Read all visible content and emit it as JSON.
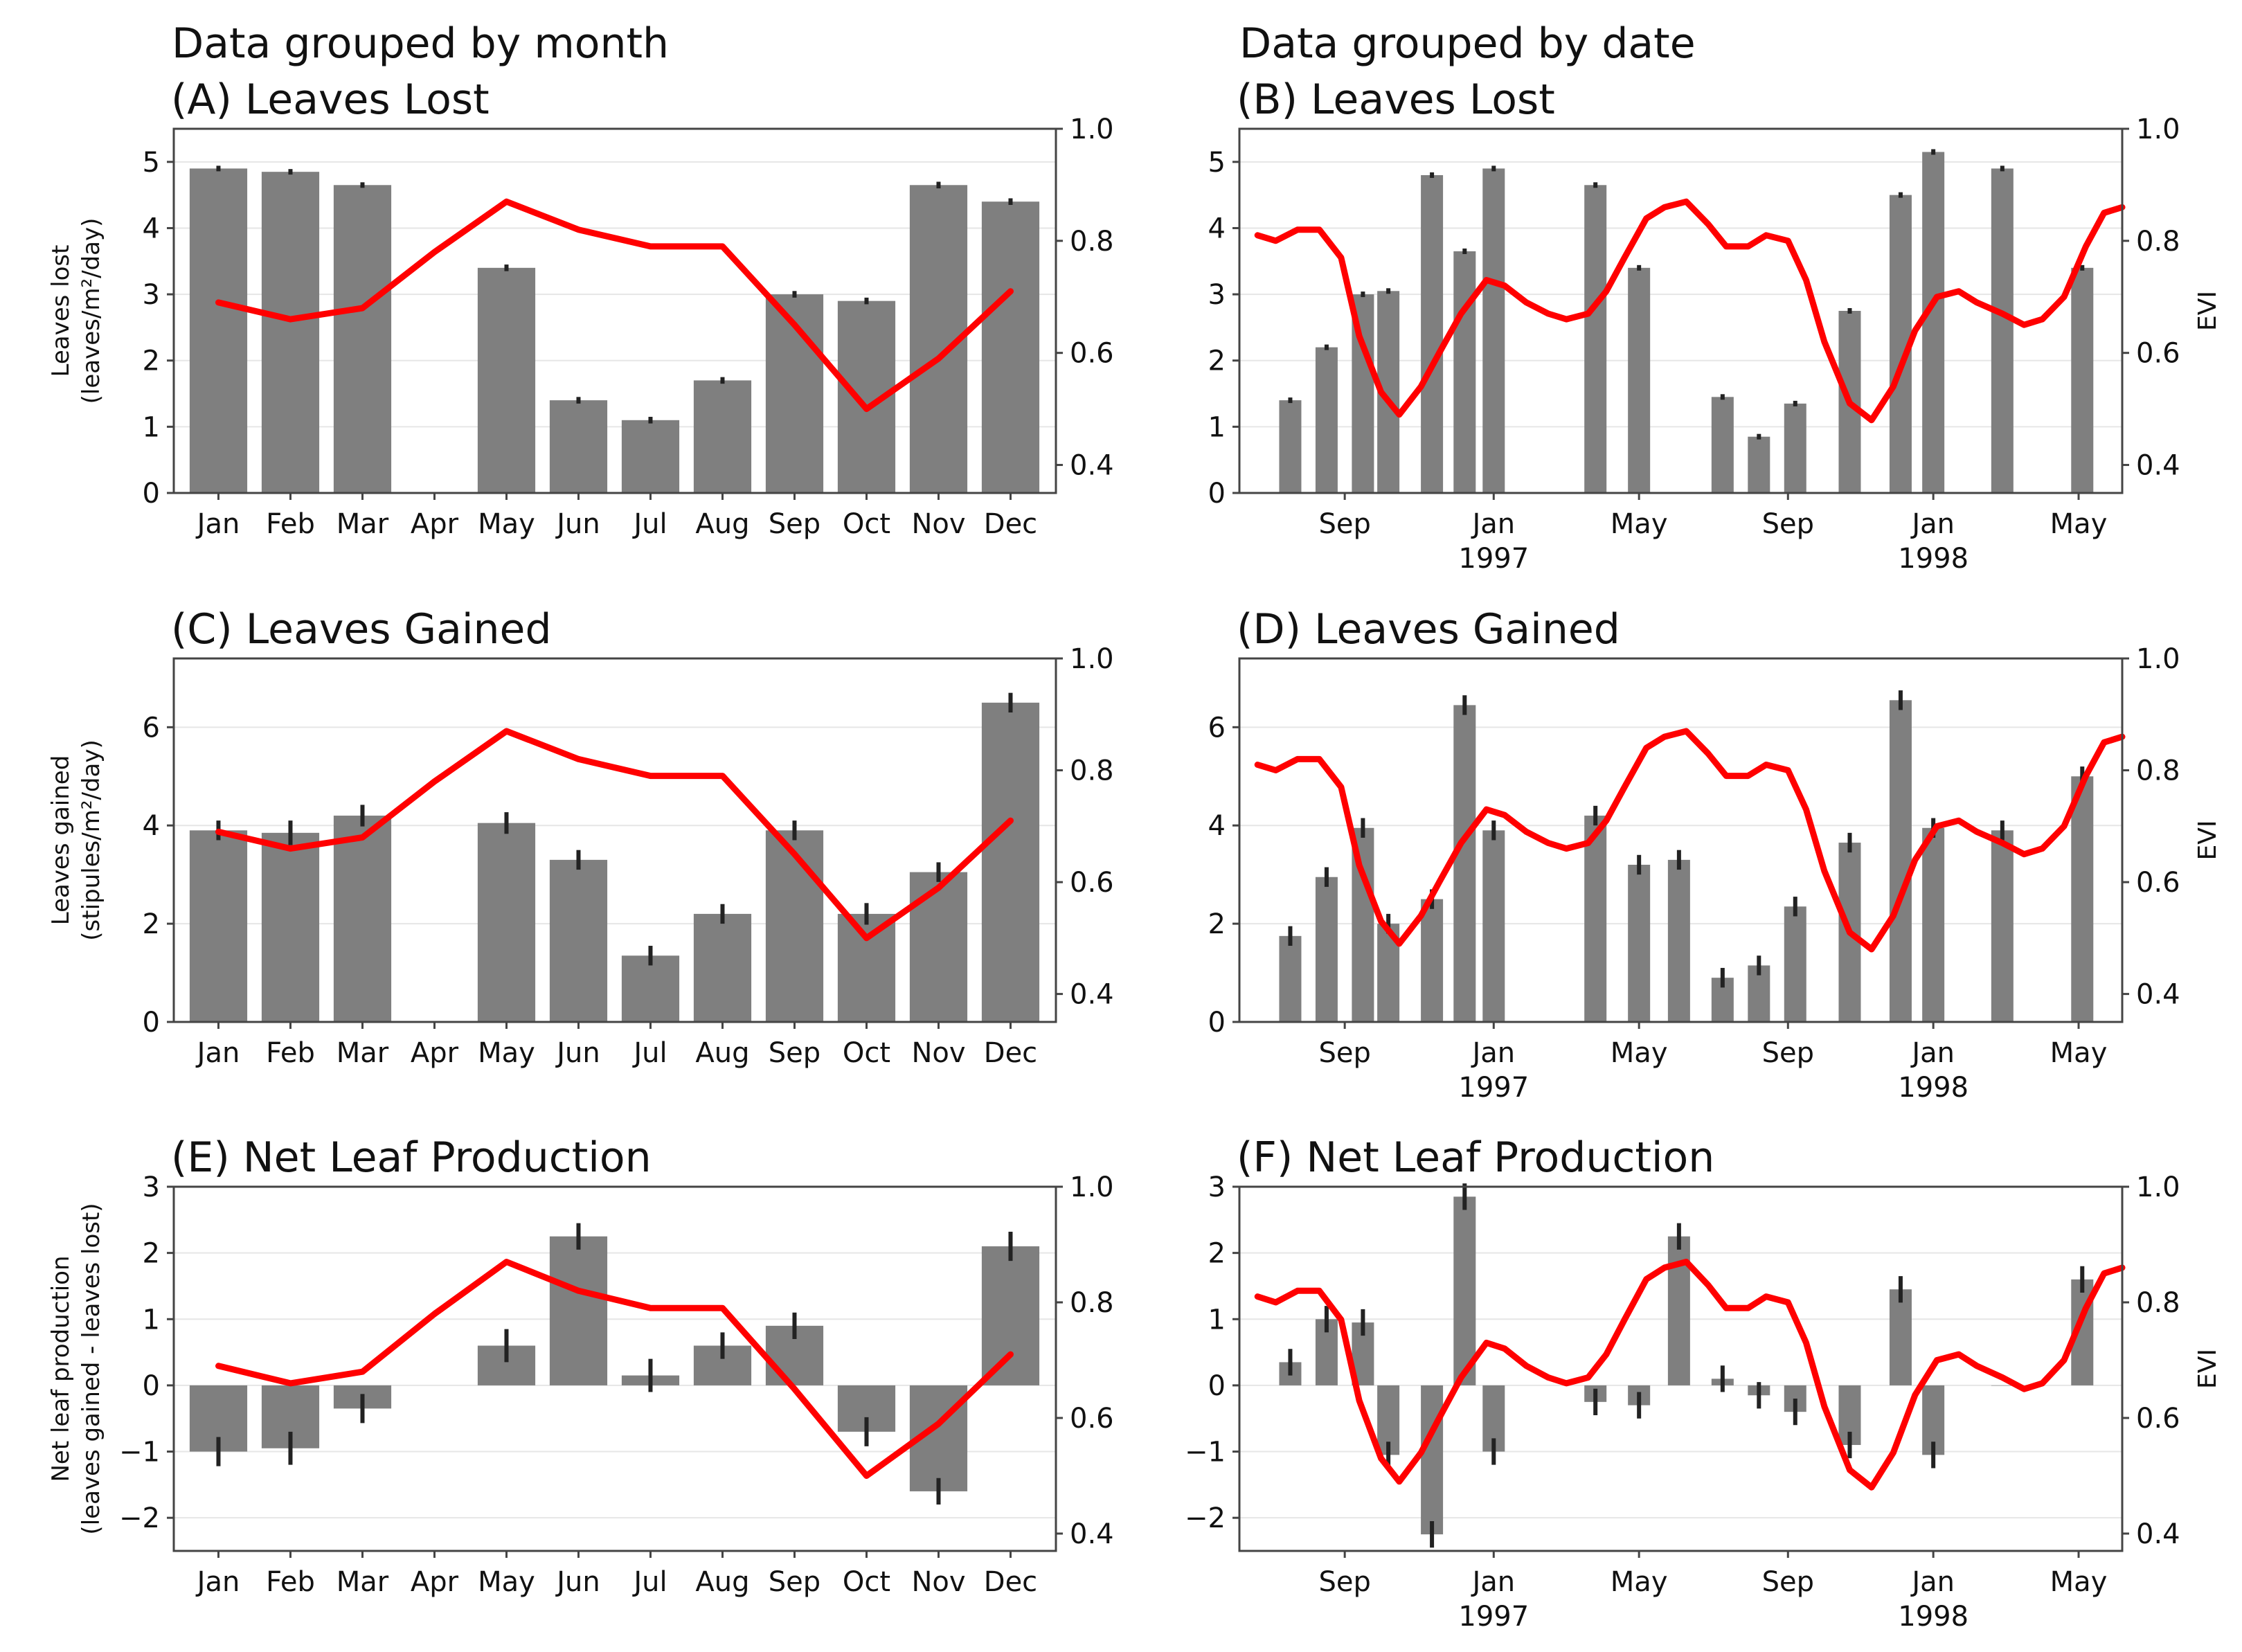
{
  "headings": {
    "left": "Data grouped by month",
    "right": "Data grouped by date"
  },
  "colors": {
    "bar": "#7f7f7f",
    "evi_line": "#ff0000",
    "grid": "#e6e6e6",
    "axis": "#444444"
  },
  "chart_data": [
    {
      "id": "A",
      "type": "bar",
      "title": "(A) Leaves Lost",
      "ylabel": [
        "Leaves lost",
        "(leaves/m²/day)"
      ],
      "ylim": [
        0,
        5.5
      ],
      "yticks": [
        0,
        1,
        2,
        3,
        4,
        5
      ],
      "y2label": "",
      "y2lim": [
        0.35,
        1.0
      ],
      "y2ticks": [
        0.4,
        0.6,
        0.8,
        1.0
      ],
      "categories": [
        "Jan",
        "Feb",
        "Mar",
        "Apr",
        "May",
        "Jun",
        "Jul",
        "Aug",
        "Sep",
        "Oct",
        "Nov",
        "Dec"
      ],
      "values": [
        4.9,
        4.85,
        4.65,
        null,
        3.4,
        1.4,
        1.1,
        1.7,
        3.0,
        2.9,
        4.65,
        4.4
      ],
      "errors": [
        0.04,
        0.04,
        0.04,
        null,
        0.05,
        0.05,
        0.05,
        0.05,
        0.05,
        0.05,
        0.05,
        0.05
      ],
      "evi": [
        0.69,
        0.66,
        0.68,
        0.78,
        0.87,
        0.82,
        0.79,
        0.79,
        0.65,
        0.5,
        0.59,
        0.71
      ]
    },
    {
      "id": "B",
      "type": "bar",
      "title": "(B) Leaves Lost",
      "ylabel": [],
      "ylim": [
        0,
        5.5
      ],
      "yticks": [
        0,
        1,
        2,
        3,
        4,
        5
      ],
      "y2label": "EVI",
      "y2lim": [
        0.35,
        1.0
      ],
      "y2ticks": [
        0.4,
        0.6,
        0.8,
        1.0
      ],
      "xlim": [
        0,
        24.3
      ],
      "xticks": [
        {
          "x": 2.9,
          "label": "Sep",
          "sub": ""
        },
        {
          "x": 7.0,
          "label": "Jan",
          "sub": "1997"
        },
        {
          "x": 11.0,
          "label": "May",
          "sub": ""
        },
        {
          "x": 15.1,
          "label": "Sep",
          "sub": ""
        },
        {
          "x": 19.1,
          "label": "Jan",
          "sub": "1998"
        },
        {
          "x": 23.1,
          "label": "May",
          "sub": ""
        }
      ],
      "bar_x": [
        1.4,
        2.4,
        3.4,
        4.1,
        5.3,
        6.2,
        7.0,
        9.8,
        11.0,
        13.3,
        14.3,
        15.3,
        16.8,
        18.2,
        19.1,
        21.0,
        23.2
      ],
      "values": [
        1.4,
        2.2,
        3.0,
        3.05,
        4.8,
        3.65,
        4.9,
        4.65,
        3.4,
        1.45,
        0.85,
        1.35,
        2.75,
        4.5,
        5.15,
        4.9,
        3.4
      ],
      "errors": [
        0.04,
        0.04,
        0.04,
        0.04,
        0.04,
        0.04,
        0.04,
        0.04,
        0.04,
        0.04,
        0.04,
        0.04,
        0.04,
        0.04,
        0.04,
        0.04,
        0.04
      ],
      "evi_x": [
        0.5,
        1.0,
        1.6,
        2.2,
        2.8,
        3.3,
        3.9,
        4.4,
        5.0,
        5.5,
        6.1,
        6.8,
        7.3,
        7.9,
        8.5,
        9.0,
        9.6,
        10.1,
        10.6,
        11.2,
        11.7,
        12.3,
        12.9,
        13.4,
        14.0,
        14.5,
        15.1,
        15.6,
        16.1,
        16.8,
        17.4,
        18.0,
        18.6,
        19.2,
        19.8,
        20.3,
        21.0,
        21.6,
        22.1,
        22.7,
        23.3,
        23.8,
        24.3
      ],
      "evi": [
        0.81,
        0.8,
        0.82,
        0.82,
        0.77,
        0.63,
        0.53,
        0.49,
        0.54,
        0.6,
        0.67,
        0.73,
        0.72,
        0.69,
        0.67,
        0.66,
        0.67,
        0.71,
        0.77,
        0.84,
        0.86,
        0.87,
        0.83,
        0.79,
        0.79,
        0.81,
        0.8,
        0.73,
        0.62,
        0.51,
        0.48,
        0.54,
        0.64,
        0.7,
        0.71,
        0.69,
        0.67,
        0.65,
        0.66,
        0.7,
        0.79,
        0.85,
        0.86
      ]
    },
    {
      "id": "C",
      "type": "bar",
      "title": "(C) Leaves Gained",
      "ylabel": [
        "Leaves gained",
        "(stipules/m²/day)"
      ],
      "ylim": [
        0,
        7.4
      ],
      "yticks": [
        0,
        2,
        4,
        6
      ],
      "y2label": "",
      "y2lim": [
        0.35,
        1.0
      ],
      "y2ticks": [
        0.4,
        0.6,
        0.8,
        1.0
      ],
      "categories": [
        "Jan",
        "Feb",
        "Mar",
        "Apr",
        "May",
        "Jun",
        "Jul",
        "Aug",
        "Sep",
        "Oct",
        "Nov",
        "Dec"
      ],
      "values": [
        3.9,
        3.85,
        4.2,
        null,
        4.05,
        3.3,
        1.35,
        2.2,
        3.9,
        2.2,
        3.05,
        6.5
      ],
      "errors": [
        0.2,
        0.25,
        0.22,
        null,
        0.22,
        0.2,
        0.2,
        0.2,
        0.2,
        0.22,
        0.2,
        0.2
      ],
      "evi": [
        0.69,
        0.66,
        0.68,
        0.78,
        0.87,
        0.82,
        0.79,
        0.79,
        0.65,
        0.5,
        0.59,
        0.71
      ]
    },
    {
      "id": "D",
      "type": "bar",
      "title": "(D) Leaves Gained",
      "ylabel": [],
      "ylim": [
        0,
        7.4
      ],
      "yticks": [
        0,
        2,
        4,
        6
      ],
      "y2label": "EVI",
      "y2lim": [
        0.35,
        1.0
      ],
      "y2ticks": [
        0.4,
        0.6,
        0.8,
        1.0
      ],
      "xlim": [
        0,
        24.3
      ],
      "xticks": [
        {
          "x": 2.9,
          "label": "Sep",
          "sub": ""
        },
        {
          "x": 7.0,
          "label": "Jan",
          "sub": "1997"
        },
        {
          "x": 11.0,
          "label": "May",
          "sub": ""
        },
        {
          "x": 15.1,
          "label": "Sep",
          "sub": ""
        },
        {
          "x": 19.1,
          "label": "Jan",
          "sub": "1998"
        },
        {
          "x": 23.1,
          "label": "May",
          "sub": ""
        }
      ],
      "bar_x": [
        1.4,
        2.4,
        3.4,
        4.1,
        5.3,
        6.2,
        7.0,
        9.8,
        11.0,
        12.1,
        13.3,
        14.3,
        15.3,
        16.8,
        18.2,
        19.1,
        21.0,
        23.2
      ],
      "values": [
        1.75,
        2.95,
        3.95,
        2.0,
        2.5,
        6.45,
        3.9,
        4.2,
        3.2,
        3.3,
        0.9,
        1.15,
        2.35,
        3.65,
        6.55,
        3.95,
        3.9,
        5.0
      ],
      "errors": [
        0.2,
        0.2,
        0.2,
        0.2,
        0.2,
        0.2,
        0.2,
        0.2,
        0.2,
        0.2,
        0.2,
        0.2,
        0.2,
        0.2,
        0.2,
        0.2,
        0.2,
        0.2
      ],
      "evi_x": [
        0.5,
        1.0,
        1.6,
        2.2,
        2.8,
        3.3,
        3.9,
        4.4,
        5.0,
        5.5,
        6.1,
        6.8,
        7.3,
        7.9,
        8.5,
        9.0,
        9.6,
        10.1,
        10.6,
        11.2,
        11.7,
        12.3,
        12.9,
        13.4,
        14.0,
        14.5,
        15.1,
        15.6,
        16.1,
        16.8,
        17.4,
        18.0,
        18.6,
        19.2,
        19.8,
        20.3,
        21.0,
        21.6,
        22.1,
        22.7,
        23.3,
        23.8,
        24.3
      ],
      "evi": [
        0.81,
        0.8,
        0.82,
        0.82,
        0.77,
        0.63,
        0.53,
        0.49,
        0.54,
        0.6,
        0.67,
        0.73,
        0.72,
        0.69,
        0.67,
        0.66,
        0.67,
        0.71,
        0.77,
        0.84,
        0.86,
        0.87,
        0.83,
        0.79,
        0.79,
        0.81,
        0.8,
        0.73,
        0.62,
        0.51,
        0.48,
        0.54,
        0.64,
        0.7,
        0.71,
        0.69,
        0.67,
        0.65,
        0.66,
        0.7,
        0.79,
        0.85,
        0.86
      ]
    },
    {
      "id": "E",
      "type": "bar",
      "title": "(E) Net Leaf Production",
      "ylabel": [
        "Net leaf production",
        "(leaves gained - leaves lost)"
      ],
      "ylim": [
        -2.5,
        3.0
      ],
      "yticks": [
        -2,
        -1,
        0,
        1,
        2,
        3
      ],
      "y2label": "",
      "y2lim": [
        0.37,
        1.0
      ],
      "y2ticks": [
        0.4,
        0.6,
        0.8,
        1.0
      ],
      "categories": [
        "Jan",
        "Feb",
        "Mar",
        "Apr",
        "May",
        "Jun",
        "Jul",
        "Aug",
        "Sep",
        "Oct",
        "Nov",
        "Dec"
      ],
      "values": [
        -1.0,
        -0.95,
        -0.35,
        null,
        0.6,
        2.25,
        0.15,
        0.6,
        0.9,
        -0.7,
        -1.6,
        2.1
      ],
      "errors": [
        0.22,
        0.25,
        0.22,
        null,
        0.25,
        0.2,
        0.25,
        0.2,
        0.2,
        0.22,
        0.2,
        0.22
      ],
      "evi": [
        0.69,
        0.66,
        0.68,
        0.78,
        0.87,
        0.82,
        0.79,
        0.79,
        0.65,
        0.5,
        0.59,
        0.71
      ]
    },
    {
      "id": "F",
      "type": "bar",
      "title": "(F) Net Leaf Production",
      "ylabel": [],
      "ylim": [
        -2.5,
        3.0
      ],
      "yticks": [
        -2,
        -1,
        0,
        1,
        2,
        3
      ],
      "y2label": "EVI",
      "y2lim": [
        0.37,
        1.0
      ],
      "y2ticks": [
        0.4,
        0.6,
        0.8,
        1.0
      ],
      "xlim": [
        0,
        24.3
      ],
      "xticks": [
        {
          "x": 2.9,
          "label": "Sep",
          "sub": ""
        },
        {
          "x": 7.0,
          "label": "Jan",
          "sub": "1997"
        },
        {
          "x": 11.0,
          "label": "May",
          "sub": ""
        },
        {
          "x": 15.1,
          "label": "Sep",
          "sub": ""
        },
        {
          "x": 19.1,
          "label": "Jan",
          "sub": "1998"
        },
        {
          "x": 23.1,
          "label": "May",
          "sub": ""
        }
      ],
      "bar_x": [
        1.4,
        2.4,
        3.4,
        4.1,
        5.3,
        6.2,
        7.0,
        9.8,
        11.0,
        12.1,
        13.3,
        14.3,
        15.3,
        16.8,
        18.2,
        19.1,
        21.0,
        23.2
      ],
      "values": [
        0.35,
        1.0,
        0.95,
        -1.05,
        -2.25,
        2.85,
        -1.0,
        -0.25,
        -0.3,
        2.25,
        0.1,
        -0.15,
        -0.4,
        -0.9,
        1.45,
        -1.05,
        0.0,
        1.6
      ],
      "errors": [
        0.2,
        0.2,
        0.2,
        0.2,
        0.2,
        0.2,
        0.2,
        0.2,
        0.2,
        0.2,
        0.2,
        0.2,
        0.2,
        0.2,
        0.2,
        0.2,
        0.0,
        0.2
      ],
      "evi_x": [
        0.5,
        1.0,
        1.6,
        2.2,
        2.8,
        3.3,
        3.9,
        4.4,
        5.0,
        5.5,
        6.1,
        6.8,
        7.3,
        7.9,
        8.5,
        9.0,
        9.6,
        10.1,
        10.6,
        11.2,
        11.7,
        12.3,
        12.9,
        13.4,
        14.0,
        14.5,
        15.1,
        15.6,
        16.1,
        16.8,
        17.4,
        18.0,
        18.6,
        19.2,
        19.8,
        20.3,
        21.0,
        21.6,
        22.1,
        22.7,
        23.3,
        23.8,
        24.3
      ],
      "evi": [
        0.81,
        0.8,
        0.82,
        0.82,
        0.77,
        0.63,
        0.53,
        0.49,
        0.54,
        0.6,
        0.67,
        0.73,
        0.72,
        0.69,
        0.67,
        0.66,
        0.67,
        0.71,
        0.77,
        0.84,
        0.86,
        0.87,
        0.83,
        0.79,
        0.79,
        0.81,
        0.8,
        0.73,
        0.62,
        0.51,
        0.48,
        0.54,
        0.64,
        0.7,
        0.71,
        0.69,
        0.67,
        0.65,
        0.66,
        0.7,
        0.79,
        0.85,
        0.86
      ]
    }
  ]
}
